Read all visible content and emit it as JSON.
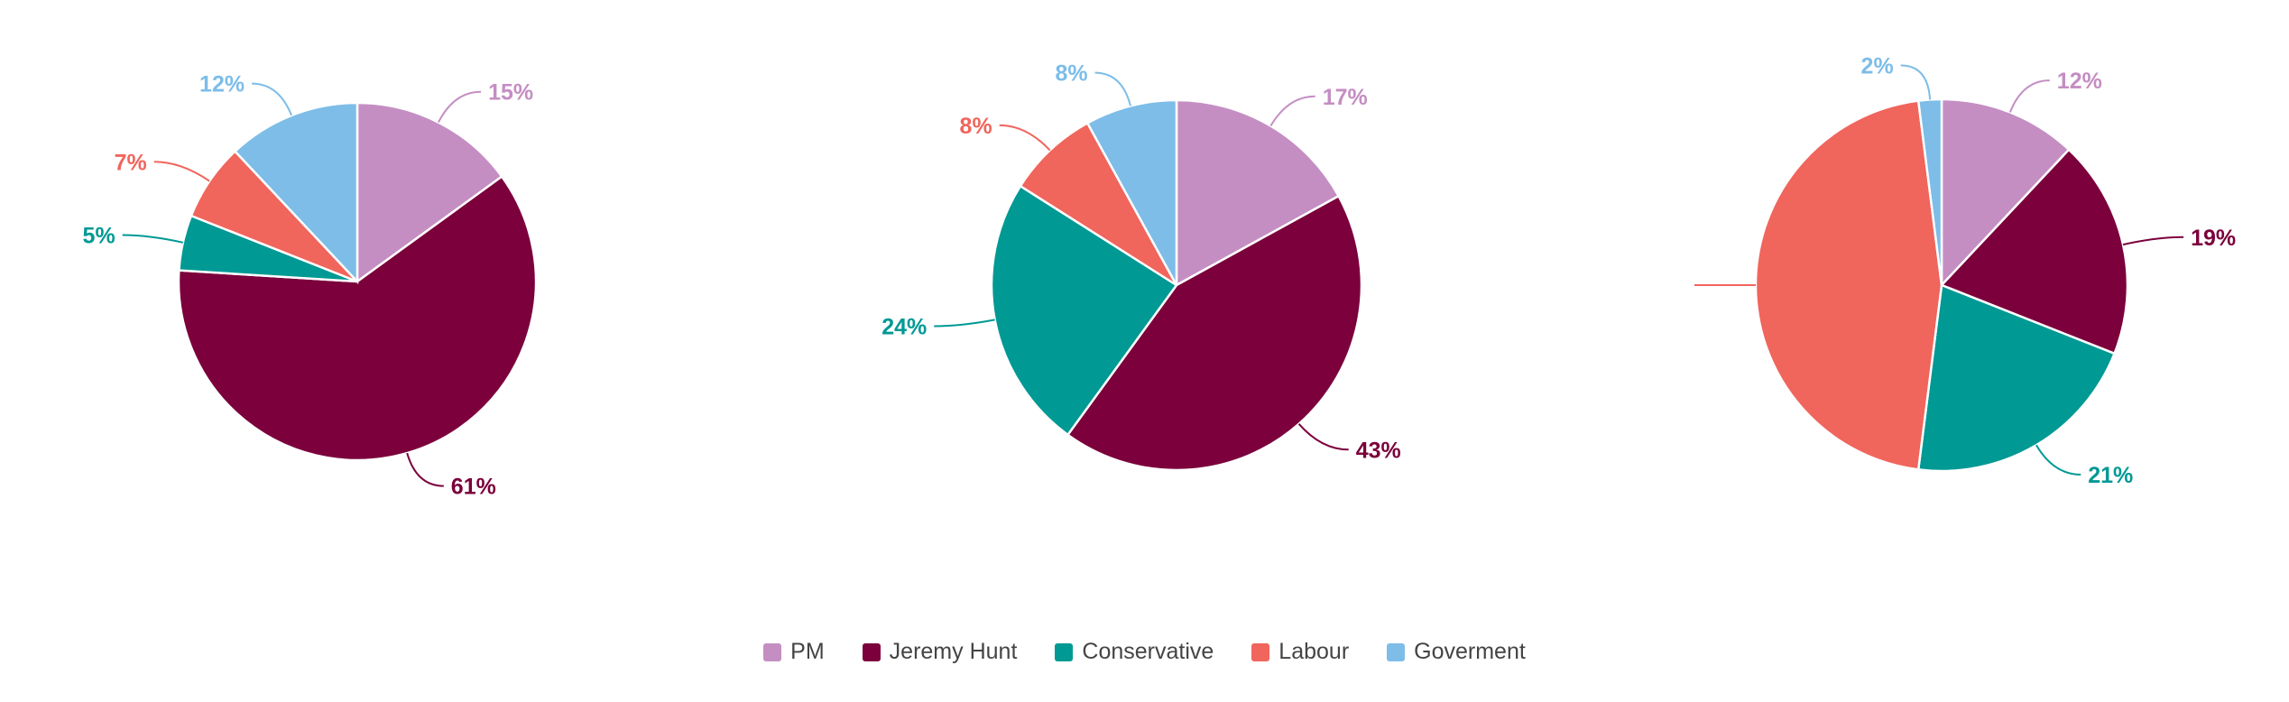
{
  "legend": {
    "items": [
      {
        "label": "PM",
        "color": "#c48ec3"
      },
      {
        "label": "Jeremy Hunt",
        "color": "#7b003c"
      },
      {
        "label": "Conservative",
        "color": "#009994"
      },
      {
        "label": "Labour",
        "color": "#f0655c"
      },
      {
        "label": "Goverment",
        "color": "#7dbde8"
      }
    ]
  },
  "chart_data": [
    {
      "type": "pie",
      "title": "",
      "categories": [
        "PM",
        "Jeremy Hunt",
        "Conservative",
        "Labour",
        "Goverment"
      ],
      "values": [
        15,
        61,
        5,
        7,
        12
      ],
      "labels": [
        "15%",
        "61%",
        "5%",
        "7%",
        "12%"
      ]
    },
    {
      "type": "pie",
      "title": "",
      "categories": [
        "PM",
        "Jeremy Hunt",
        "Conservative",
        "Labour",
        "Goverment"
      ],
      "values": [
        17,
        43,
        24,
        8,
        8
      ],
      "labels": [
        "17%",
        "43%",
        "24%",
        "8%",
        "8%"
      ]
    },
    {
      "type": "pie",
      "title": "",
      "categories": [
        "PM",
        "Jeremy Hunt",
        "Conservative",
        "Labour",
        "Goverment"
      ],
      "values": [
        12,
        19,
        21,
        46,
        2
      ],
      "labels": [
        "12%",
        "19%",
        "21%",
        "",
        "2%"
      ]
    }
  ]
}
